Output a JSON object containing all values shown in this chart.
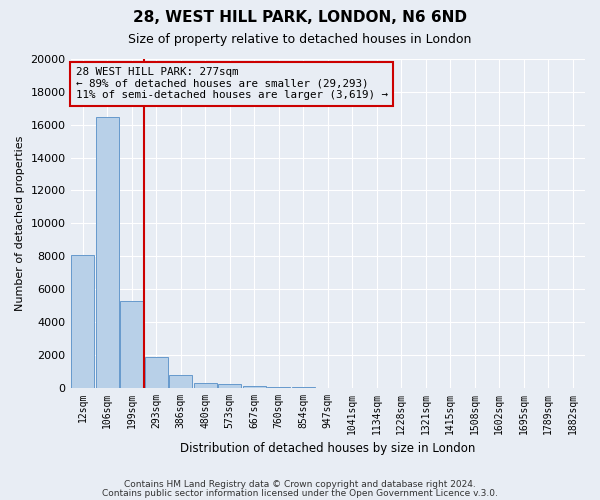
{
  "title": "28, WEST HILL PARK, LONDON, N6 6ND",
  "subtitle": "Size of property relative to detached houses in London",
  "xlabel": "Distribution of detached houses by size in London",
  "ylabel": "Number of detached properties",
  "bar_labels": [
    "12sqm",
    "106sqm",
    "199sqm",
    "293sqm",
    "386sqm",
    "480sqm",
    "573sqm",
    "667sqm",
    "760sqm",
    "854sqm",
    "947sqm",
    "1041sqm",
    "1134sqm",
    "1228sqm",
    "1321sqm",
    "1415sqm",
    "1508sqm",
    "1602sqm",
    "1695sqm",
    "1789sqm",
    "1882sqm"
  ],
  "bar_values": [
    8100,
    16500,
    5300,
    1850,
    750,
    300,
    200,
    120,
    60,
    30,
    0,
    0,
    0,
    0,
    0,
    0,
    0,
    0,
    0,
    0,
    0
  ],
  "bar_color": "#b8d0e8",
  "bar_edgecolor": "#6699cc",
  "background_color": "#e8edf4",
  "vline_x": 2.5,
  "vline_color": "#cc0000",
  "annotation_text": "28 WEST HILL PARK: 277sqm\n← 89% of detached houses are smaller (29,293)\n11% of semi-detached houses are larger (3,619) →",
  "annotation_box_edgecolor": "#cc0000",
  "ylim": [
    0,
    20000
  ],
  "yticks": [
    0,
    2000,
    4000,
    6000,
    8000,
    10000,
    12000,
    14000,
    16000,
    18000,
    20000
  ],
  "footer_line1": "Contains HM Land Registry data © Crown copyright and database right 2024.",
  "footer_line2": "Contains public sector information licensed under the Open Government Licence v.3.0.",
  "grid_color": "#ffffff",
  "figsize": [
    6.0,
    5.0
  ],
  "dpi": 100
}
